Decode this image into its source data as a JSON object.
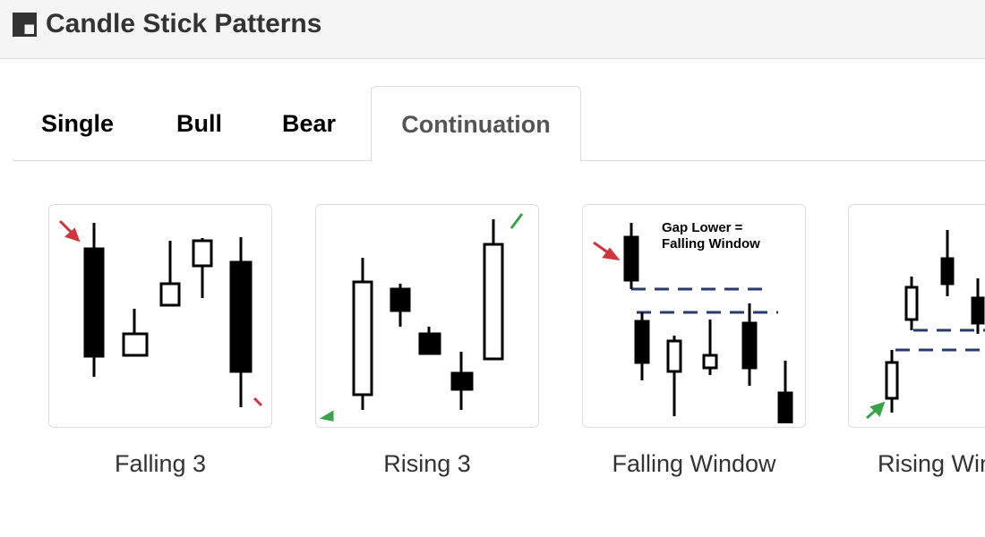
{
  "header": {
    "title": "Candle Stick Patterns",
    "icon": "board-icon"
  },
  "tabs": [
    {
      "label": "Single",
      "active": false
    },
    {
      "label": "Bull",
      "active": false
    },
    {
      "label": "Bear",
      "active": false
    },
    {
      "label": "Continuation",
      "active": true
    }
  ],
  "cards": [
    {
      "label": "Falling 3"
    },
    {
      "label": "Rising 3"
    },
    {
      "label": "Falling Window",
      "annotation": [
        "Gap Lower =",
        "Falling Window"
      ]
    },
    {
      "label": "Rising Window"
    }
  ],
  "colors": {
    "down_arrow": "#d0343c",
    "up_arrow": "#3aa34a",
    "gap_line": "#2b3a6b"
  }
}
